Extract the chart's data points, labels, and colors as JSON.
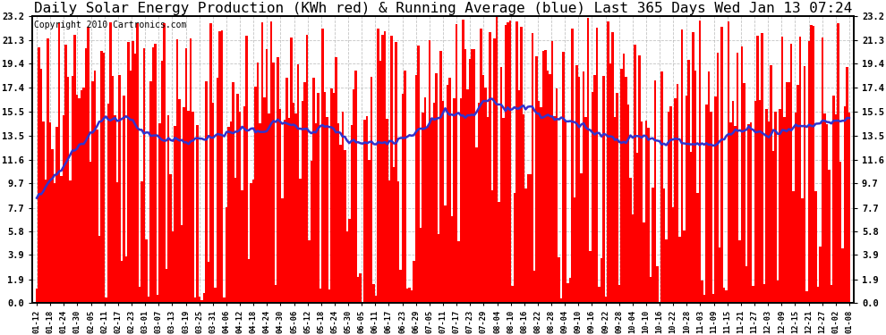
{
  "title": "Daily Solar Energy Production (KWh red) & Running Average (blue) Last 365 Days Wed Jan 13 07:24",
  "copyright_text": "Copyright 2010 Cartronics.com",
  "yticks": [
    0.0,
    1.9,
    3.9,
    5.8,
    7.7,
    9.7,
    11.6,
    13.5,
    15.5,
    17.4,
    19.4,
    21.3,
    23.2
  ],
  "ymax": 23.2,
  "ymin": 0.0,
  "bar_color": "#FF0000",
  "avg_color": "#3333CC",
  "background_color": "#FFFFFF",
  "grid_color": "#AAAAAA",
  "title_fontsize": 11.5,
  "copyright_fontsize": 7,
  "xtick_labels": [
    "01-12",
    "01-18",
    "01-24",
    "01-30",
    "02-05",
    "02-11",
    "02-17",
    "02-23",
    "03-01",
    "03-07",
    "03-13",
    "03-19",
    "03-25",
    "03-31",
    "04-06",
    "04-12",
    "04-18",
    "04-24",
    "04-30",
    "05-06",
    "05-12",
    "05-18",
    "05-24",
    "05-30",
    "06-05",
    "06-11",
    "06-17",
    "06-23",
    "06-29",
    "07-05",
    "07-11",
    "07-17",
    "07-23",
    "07-29",
    "08-04",
    "08-10",
    "08-16",
    "08-22",
    "08-28",
    "09-04",
    "09-10",
    "09-16",
    "09-22",
    "09-28",
    "10-04",
    "10-10",
    "10-16",
    "10-22",
    "10-28",
    "11-03",
    "11-09",
    "11-15",
    "11-21",
    "11-27",
    "12-03",
    "12-09",
    "12-15",
    "12-21",
    "12-27",
    "01-02",
    "01-08"
  ]
}
